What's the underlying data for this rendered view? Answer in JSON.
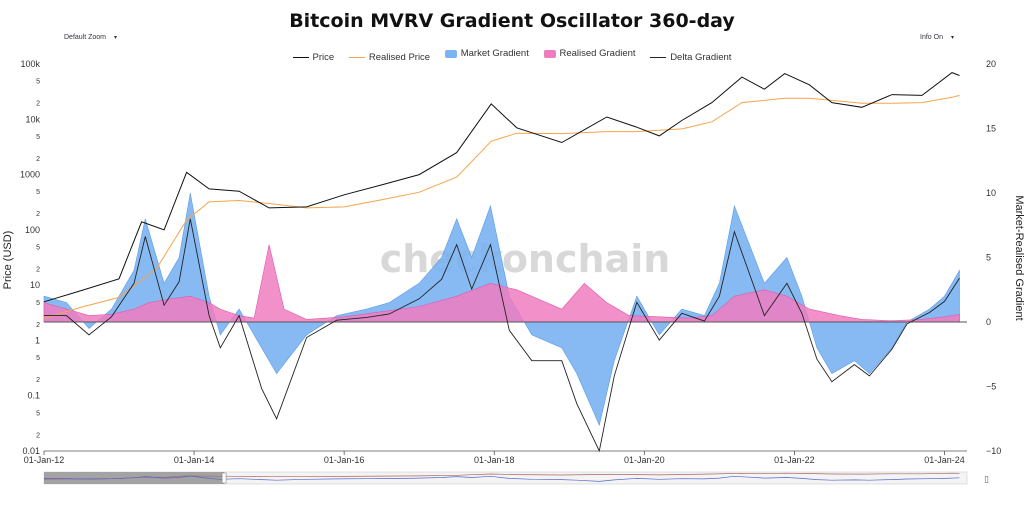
{
  "ui": {
    "zoom_label": "Default Zoom",
    "info_label": "Info On",
    "dropdown_arrow": "▾",
    "watermark": "checkonchain",
    "navigator_handle": "▯"
  },
  "chart_data": {
    "type": "line",
    "title": "Bitcoin MVRV Gradient Oscillator 360-day",
    "ylabel_left": "Price (USD)",
    "ylabel_right": "Market-Realised Gradient",
    "yscale_left": "log",
    "ylim_left": [
      0.01,
      100000
    ],
    "ylim_right": [
      -10,
      20
    ],
    "left_ticks": [
      "0.01",
      "2",
      "5",
      "0.1",
      "2",
      "5",
      "1",
      "2",
      "5",
      "10",
      "2",
      "5",
      "100",
      "2",
      "5",
      "1000",
      "2",
      "5",
      "10k",
      "2",
      "5",
      "100k"
    ],
    "right_ticks": [
      "−10",
      "−5",
      "0",
      "5",
      "10",
      "15",
      "20"
    ],
    "x_ticks": [
      "01-Jan-12",
      "01-Jan-14",
      "01-Jan-16",
      "01-Jan-18",
      "01-Jan-20",
      "01-Jan-22",
      "01-Jan-24"
    ],
    "legend": [
      {
        "name": "Price",
        "color": "#111111",
        "kind": "line"
      },
      {
        "name": "Realised Price",
        "color": "#f5a54a",
        "kind": "line"
      },
      {
        "name": "Market Gradient",
        "color": "#7ab3f2",
        "kind": "area"
      },
      {
        "name": "Realised Gradient",
        "color": "#f07cbf",
        "kind": "area"
      },
      {
        "name": "Delta Gradient",
        "color": "#222222",
        "kind": "line"
      }
    ],
    "series": [
      {
        "name": "Price",
        "x": [
          2012,
          2012.5,
          2013,
          2013.3,
          2013.6,
          2013.9,
          2014.2,
          2014.6,
          2015,
          2015.5,
          2016,
          2016.5,
          2017,
          2017.5,
          2017.96,
          2018.3,
          2018.9,
          2019.5,
          2019.9,
          2020.2,
          2020.5,
          2020.9,
          2021.3,
          2021.6,
          2021.87,
          2022.2,
          2022.5,
          2022.9,
          2023.3,
          2023.7,
          2024.1,
          2024.2
        ],
        "y": [
          5,
          8,
          13,
          140,
          100,
          1100,
          550,
          500,
          250,
          260,
          430,
          650,
          1000,
          2500,
          19000,
          7000,
          3800,
          11000,
          7200,
          5000,
          9500,
          20000,
          58000,
          35000,
          67000,
          42000,
          20000,
          16500,
          28000,
          27000,
          70000,
          62000
        ]
      },
      {
        "name": "Realised Price",
        "x": [
          2012,
          2012.5,
          2013,
          2013.5,
          2013.9,
          2014.2,
          2014.6,
          2015,
          2015.5,
          2016,
          2016.5,
          2017,
          2017.5,
          2017.96,
          2018.3,
          2018.9,
          2019.5,
          2019.9,
          2020.5,
          2020.9,
          2021.3,
          2021.87,
          2022.2,
          2022.5,
          2022.9,
          2023.3,
          2023.7,
          2024.1,
          2024.2
        ],
        "y": [
          2.5,
          4,
          6,
          20,
          150,
          320,
          340,
          300,
          250,
          260,
          350,
          480,
          900,
          4000,
          5600,
          5500,
          6000,
          6000,
          6700,
          9000,
          20000,
          24000,
          24000,
          22000,
          19500,
          19500,
          20000,
          25000,
          27000
        ]
      },
      {
        "name": "Market Gradient",
        "x": [
          2012,
          2012.3,
          2012.6,
          2012.9,
          2013.2,
          2013.35,
          2013.6,
          2013.8,
          2013.95,
          2014.2,
          2014.35,
          2014.6,
          2014.9,
          2015.1,
          2015.5,
          2015.9,
          2016.3,
          2016.6,
          2017,
          2017.3,
          2017.5,
          2017.7,
          2017.95,
          2018.2,
          2018.5,
          2018.9,
          2019.1,
          2019.4,
          2019.6,
          2019.9,
          2020.2,
          2020.5,
          2020.8,
          2021.0,
          2021.2,
          2021.4,
          2021.6,
          2021.9,
          2022.1,
          2022.3,
          2022.5,
          2022.8,
          2023.0,
          2023.3,
          2023.5,
          2023.8,
          2024.0,
          2024.2
        ],
        "y": [
          2,
          1.5,
          -0.5,
          1,
          4,
          8,
          3,
          5,
          10,
          2,
          -1,
          1,
          -2,
          -4,
          -1,
          0.5,
          1,
          1.5,
          3,
          5,
          8,
          5,
          9,
          2,
          -1,
          -2,
          -4,
          -8,
          -3,
          2,
          -1,
          1,
          0.5,
          3,
          9,
          6,
          3,
          5,
          2,
          -2,
          -4,
          -3,
          -4,
          -2,
          0,
          1,
          2,
          4
        ]
      },
      {
        "name": "Realised Gradient",
        "x": [
          2012,
          2012.3,
          2012.6,
          2012.9,
          2013.2,
          2013.4,
          2013.7,
          2013.95,
          2014.2,
          2014.35,
          2014.6,
          2014.8,
          2015.0,
          2015.2,
          2015.5,
          2016,
          2016.5,
          2017,
          2017.5,
          2017.95,
          2018.3,
          2018.9,
          2019.2,
          2019.5,
          2019.8,
          2020.2,
          2020.6,
          2020.9,
          2021.2,
          2021.6,
          2021.9,
          2022.2,
          2022.6,
          2022.9,
          2023.3,
          2023.7,
          2024.0,
          2024.2
        ],
        "y": [
          1.5,
          1,
          0.5,
          0.6,
          1,
          1.5,
          1.8,
          2,
          1.5,
          1,
          0.5,
          0.3,
          6,
          1,
          0.2,
          0.4,
          0.8,
          1.2,
          2,
          3,
          2.5,
          1,
          3,
          1.5,
          0.5,
          0.4,
          0.3,
          0.5,
          2,
          2.5,
          2,
          1,
          0.5,
          0.2,
          0.1,
          0.2,
          0.4,
          0.6
        ]
      }
    ]
  }
}
